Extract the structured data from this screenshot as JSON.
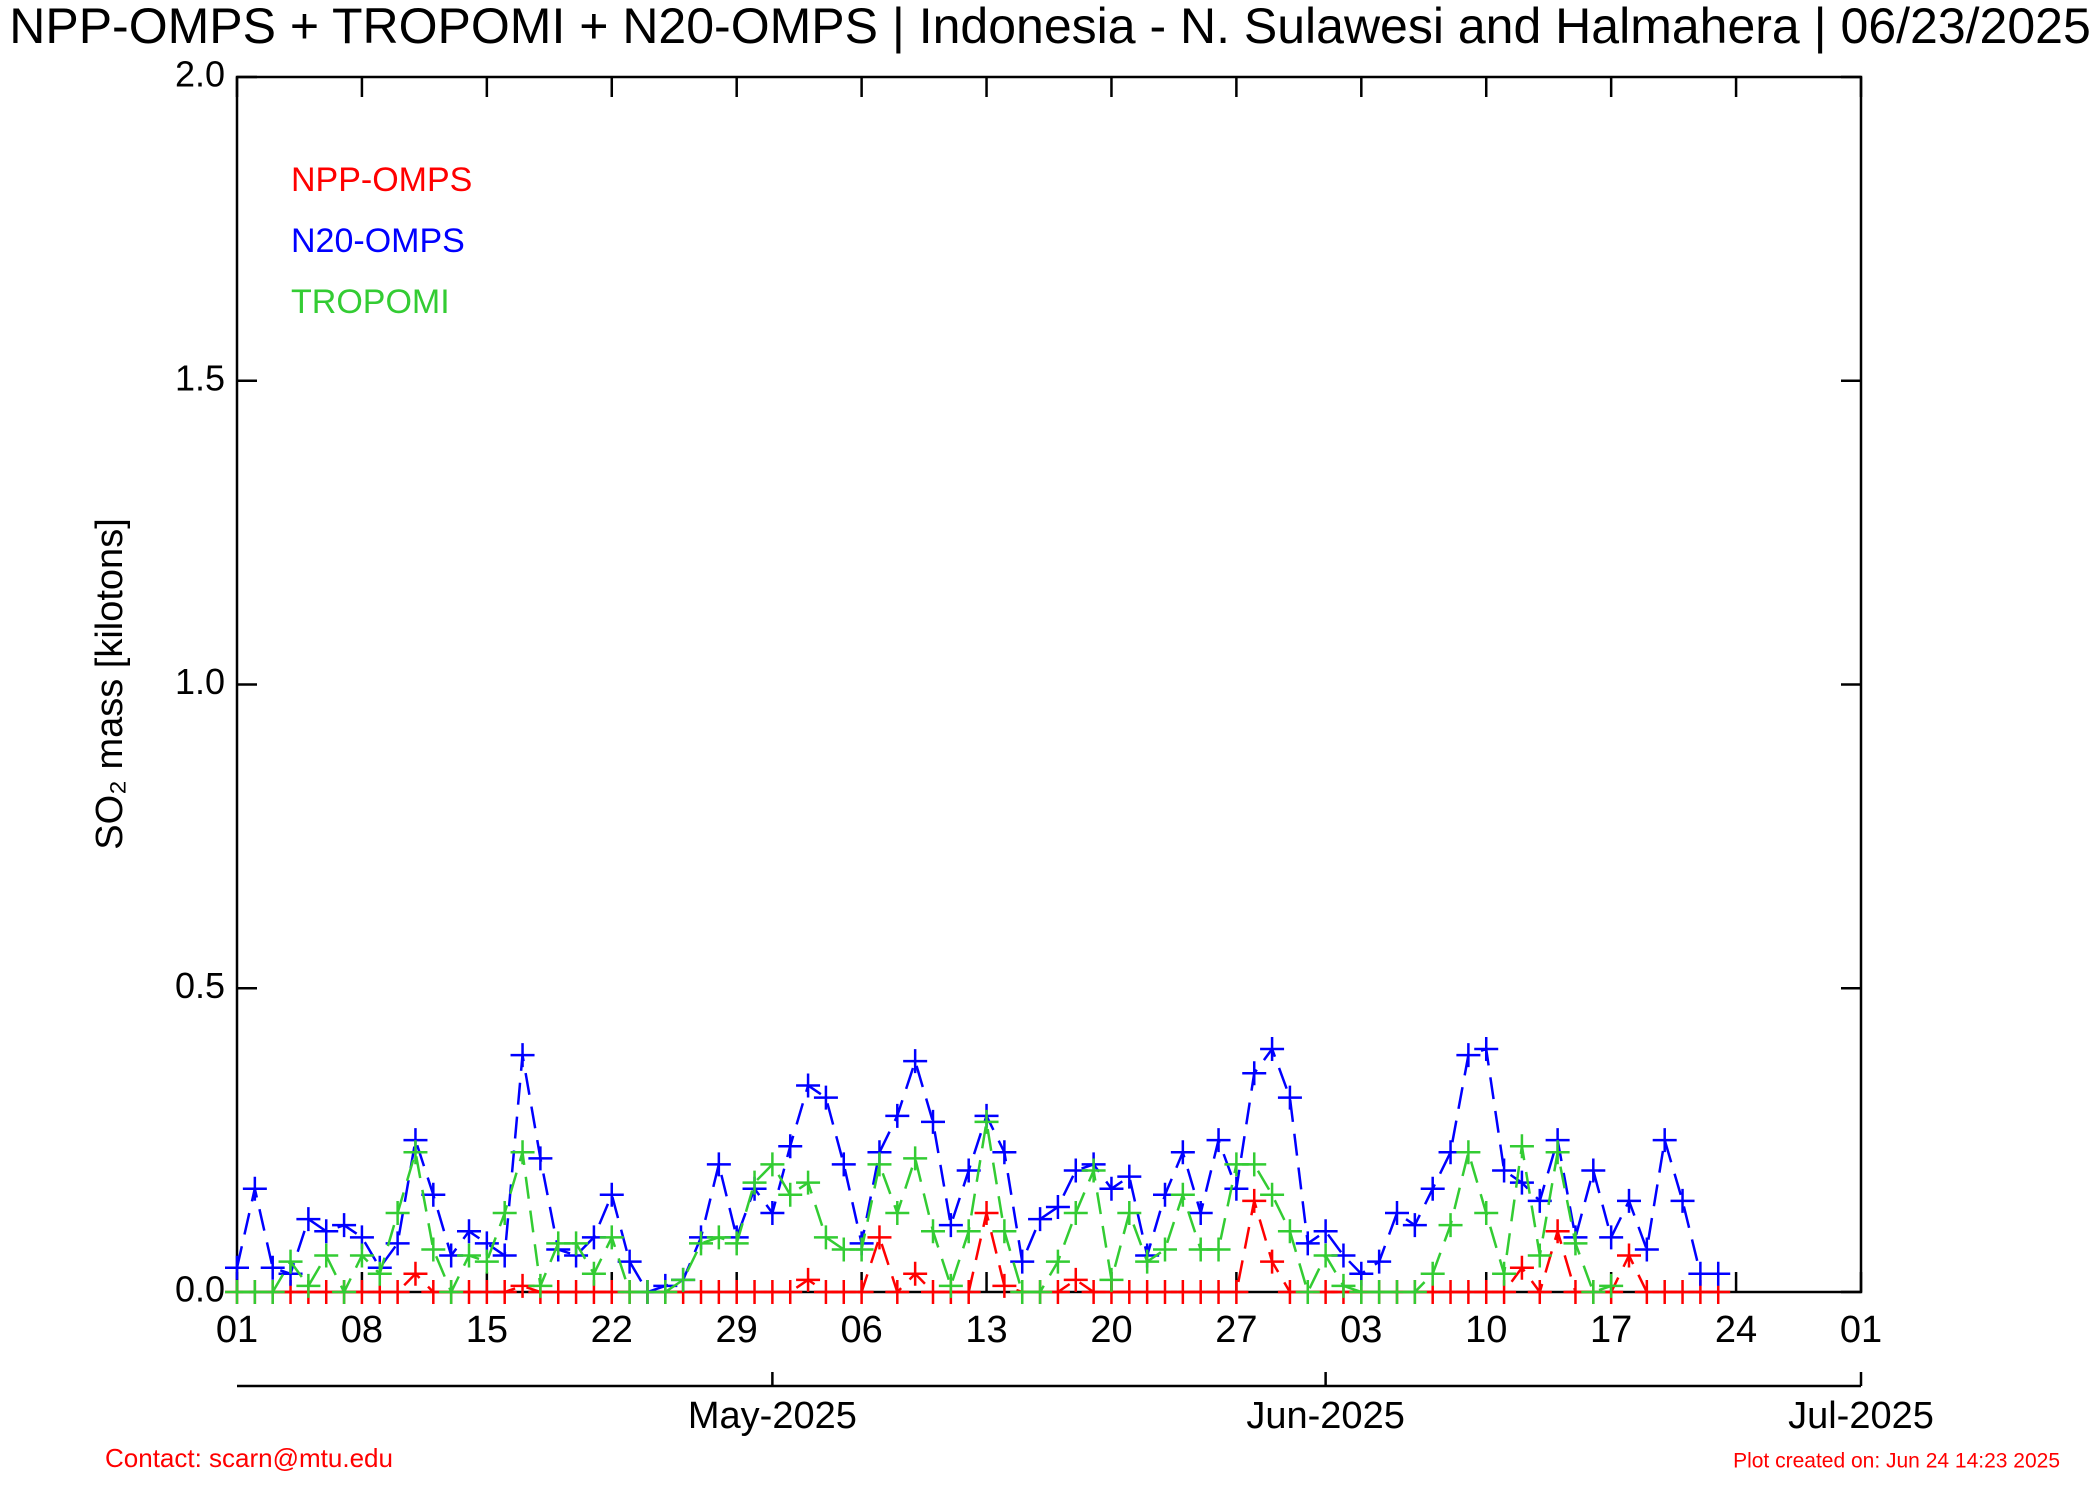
{
  "chart_data": {
    "type": "line",
    "title": "NPP-OMPS + TROPOMI + N20-OMPS | Indonesia - N. Sulawesi and Halmahera | 06/23/2025",
    "y_label": "SO₂ mass [kilotons]",
    "start": "2025-04-01",
    "ylim": [
      0,
      2
    ],
    "yticks": [
      {
        "value": 0,
        "label": "0.0"
      },
      0.5,
      {
        "value": 1,
        "label": "1.0"
      },
      1.5,
      {
        "value": 2,
        "label": "2.0"
      }
    ],
    "xlim": [
      "2025-04-01",
      "2025-07-01"
    ],
    "xticks": [
      {
        "value": "2025-04-01",
        "label": "01"
      },
      {
        "value": "2025-04-08",
        "label": "08"
      },
      {
        "value": "2025-04-15",
        "label": "15"
      },
      {
        "value": "2025-04-22",
        "label": "22"
      },
      {
        "value": "2025-04-29",
        "label": "29"
      },
      {
        "value": "2025-05-06",
        "label": "06"
      },
      {
        "value": "2025-05-13",
        "label": "13"
      },
      {
        "value": "2025-05-20",
        "label": "20"
      },
      {
        "value": "2025-05-27",
        "label": "27"
      },
      {
        "value": "2025-06-03",
        "label": "03"
      },
      {
        "value": "2025-06-10",
        "label": "10"
      },
      {
        "value": "2025-06-17",
        "label": "17"
      },
      {
        "value": "2025-06-24",
        "label": "24"
      },
      {
        "value": "2025-07-01",
        "label": "01"
      }
    ],
    "x2ticks": [
      {
        "value": "2025-05-01",
        "label": "May-2025"
      },
      {
        "value": "2025-06-01",
        "label": "Jun-2025"
      },
      {
        "value": "2025-07-01",
        "label": "Jul-2025"
      }
    ],
    "legend": "upper left",
    "series": [
      {
        "name": "NPP-OMPS",
        "color": "#ff0000",
        "values": [
          0,
          0,
          0,
          0,
          0,
          0,
          0,
          0,
          0,
          0,
          0.03,
          0,
          0,
          0,
          0,
          0,
          0.01,
          0,
          0,
          0,
          0,
          0,
          0,
          0,
          0,
          0,
          0,
          0,
          0,
          0,
          0,
          0,
          0.02,
          0,
          0,
          0,
          0.09,
          0,
          0.03,
          0,
          0,
          0,
          0.13,
          0.01,
          0,
          0,
          0,
          0.02,
          0,
          0,
          0,
          0,
          0,
          0,
          0,
          0,
          0,
          0.15,
          0.05,
          0,
          0,
          0,
          0,
          0,
          0,
          0,
          0,
          0,
          0,
          0,
          0,
          0,
          0.04,
          0,
          0.1,
          0,
          0,
          0,
          0.06,
          0,
          0,
          0,
          0,
          0
        ]
      },
      {
        "name": "N20-OMPS",
        "color": "#0000ff",
        "values": [
          0.04,
          0.17,
          0.04,
          0.03,
          0.12,
          0.1,
          0.11,
          0.09,
          0.04,
          0.08,
          0.25,
          0.16,
          0.06,
          0.1,
          0.08,
          0.06,
          0.39,
          0.22,
          0.07,
          0.06,
          0.09,
          0.16,
          0.05,
          0,
          0.01,
          0.02,
          0.09,
          0.21,
          0.09,
          0.17,
          0.13,
          0.24,
          0.34,
          0.32,
          0.21,
          0.08,
          0.23,
          0.29,
          0.38,
          0.28,
          0.11,
          0.2,
          0.29,
          0.23,
          0.05,
          0.12,
          0.14,
          0.2,
          0.21,
          0.17,
          0.19,
          0.06,
          0.16,
          0.23,
          0.13,
          0.25,
          0.17,
          0.36,
          0.4,
          0.32,
          0.08,
          0.1,
          0.06,
          0.03,
          0.05,
          0.13,
          0.11,
          0.17,
          0.23,
          0.39,
          0.4,
          0.2,
          0.18,
          0.15,
          0.25,
          0.09,
          0.2,
          0.09,
          0.15,
          0.07,
          0.25,
          0.15,
          0.03,
          0.03
        ]
      },
      {
        "name": "TROPOMI",
        "color": "#33cc33",
        "values": [
          0,
          0,
          0,
          0.05,
          0.01,
          0.06,
          0,
          0.06,
          0.03,
          0.13,
          0.23,
          0.07,
          0,
          0.06,
          0.05,
          0.13,
          0.23,
          0.01,
          0.08,
          0.08,
          0.03,
          0.09,
          0,
          0,
          0,
          0.02,
          0.08,
          0.09,
          0.08,
          0.18,
          0.21,
          0.16,
          0.18,
          0.09,
          0.07,
          0.07,
          0.21,
          0.13,
          0.22,
          0.1,
          0.01,
          0.1,
          0.28,
          0.1,
          0,
          0,
          0.05,
          0.13,
          0.2,
          0.02,
          0.13,
          0.05,
          0.07,
          0.16,
          0.07,
          0.07,
          0.21,
          0.21,
          0.16,
          0.1,
          0,
          0.06,
          0.01,
          0,
          0,
          0,
          0,
          0.03,
          0.11,
          0.23,
          0.13,
          0.03,
          0.24,
          0.06,
          0.23,
          0.08,
          0,
          0.01,
          null,
          null,
          null,
          null,
          null,
          null
        ]
      }
    ],
    "contact": "Contact: scarn@mtu.edu",
    "created": "Plot created on: Jun 24 14:23 2025"
  }
}
